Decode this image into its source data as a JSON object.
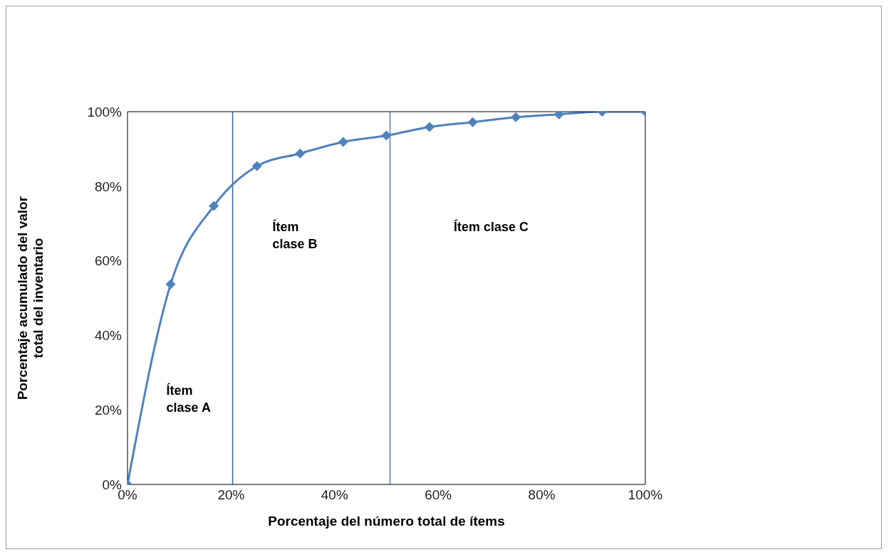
{
  "chart_data": {
    "type": "line",
    "xlabel": "Porcentaje del número total de ítems",
    "ylabel": "Porcentaje acumulado del valor\ntotal del inventario",
    "x": [
      0,
      8.33,
      16.67,
      25,
      33.33,
      41.67,
      50,
      58.33,
      66.67,
      75,
      83.33,
      91.67,
      100
    ],
    "series": [
      {
        "color": "#4f81bd",
        "values": [
          0,
          53.7,
          74.7,
          85.4,
          88.8,
          91.9,
          93.6,
          95.9,
          97.2,
          98.5,
          99.3,
          100,
          100
        ]
      }
    ],
    "xlim": [
      0,
      100
    ],
    "xticks": [
      {
        "value": 0,
        "label": "0%"
      },
      {
        "value": 20,
        "label": "20%"
      },
      {
        "value": 40,
        "label": "40%"
      },
      {
        "value": 60,
        "label": "60%"
      },
      {
        "value": 80,
        "label": "80%"
      },
      {
        "value": 100,
        "label": "100%"
      }
    ],
    "ylim": [
      0,
      100
    ],
    "yticks": [
      {
        "value": 0,
        "label": "0%"
      },
      {
        "value": 20,
        "label": "20%"
      },
      {
        "value": 40,
        "label": "40%"
      },
      {
        "value": 60,
        "label": "60%"
      },
      {
        "value": 80,
        "label": "80%"
      },
      {
        "value": 100,
        "label": "100%"
      }
    ],
    "ref_lines": [
      {
        "axis": "x",
        "value": 20.3,
        "color": "#3f5fa8"
      },
      {
        "axis": "x",
        "value": 50.7,
        "color": "#4f81bd"
      }
    ],
    "annotations": [
      "Ítem\nclase A",
      "Ítem\nclase B",
      "Ítem clase C"
    ],
    "grid": false,
    "legend": false,
    "marker": "diamond",
    "line_style": "solid"
  }
}
